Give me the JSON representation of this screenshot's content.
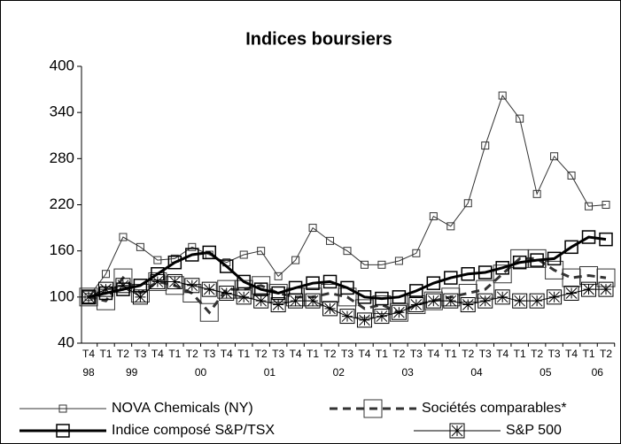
{
  "chart_data": {
    "type": "line",
    "title": "Indices boursiers",
    "categories": [
      "T4",
      "T1",
      "T2",
      "T3",
      "T4",
      "T1",
      "T2",
      "T3",
      "T4",
      "T1",
      "T2",
      "T3",
      "T4",
      "T1",
      "T2",
      "T3",
      "T4",
      "T1",
      "T2",
      "T3",
      "T4",
      "T1",
      "T2",
      "T3",
      "T4",
      "T1",
      "T2",
      "T3",
      "T4",
      "T1",
      "T2"
    ],
    "years": [
      "98",
      "99",
      "00",
      "01",
      "02",
      "03",
      "04",
      "05",
      "06"
    ],
    "ylim": [
      40,
      400
    ],
    "yticks": [
      40,
      100,
      160,
      220,
      280,
      340,
      400
    ],
    "series": [
      {
        "name": "NOVA Chemicals (NY)",
        "color": "#333333",
        "line_width": 1,
        "dash": false,
        "marker": "small-square",
        "values": [
          100,
          130,
          178,
          165,
          148,
          150,
          165,
          155,
          145,
          155,
          160,
          127,
          148,
          190,
          173,
          160,
          142,
          142,
          147,
          157,
          205,
          192,
          222,
          297,
          362,
          332,
          234,
          283,
          258,
          218,
          220
        ]
      },
      {
        "name": "Sociétés comparables*",
        "color": "#333333",
        "line_width": 3,
        "dash": true,
        "marker": "large-square",
        "values": [
          100,
          95,
          125,
          105,
          120,
          115,
          105,
          80,
          110,
          110,
          115,
          105,
          100,
          100,
          105,
          100,
          85,
          90,
          80,
          90,
          95,
          100,
          105,
          110,
          130,
          150,
          150,
          135,
          125,
          128,
          125
        ]
      },
      {
        "name": "Indice composé S&P/TSX",
        "color": "#000000",
        "line_width": 3,
        "dash": false,
        "marker": "square",
        "values": [
          100,
          105,
          110,
          115,
          130,
          145,
          155,
          158,
          140,
          120,
          110,
          105,
          112,
          118,
          120,
          112,
          100,
          98,
          100,
          108,
          118,
          125,
          130,
          132,
          138,
          145,
          148,
          150,
          165,
          178,
          175
        ]
      },
      {
        "name": "S&P 500",
        "color": "#000000",
        "line_width": 1,
        "dash": false,
        "marker": "star-square",
        "values": [
          100,
          110,
          115,
          100,
          120,
          120,
          115,
          110,
          105,
          100,
          95,
          90,
          95,
          95,
          85,
          75,
          70,
          75,
          80,
          90,
          95,
          95,
          90,
          95,
          100,
          95,
          95,
          100,
          105,
          110,
          110
        ]
      }
    ]
  }
}
